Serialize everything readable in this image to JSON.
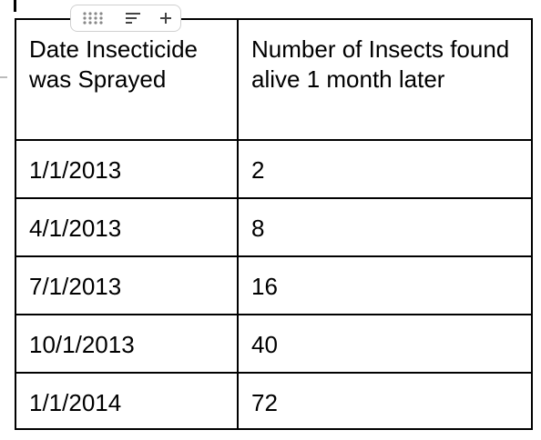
{
  "table": {
    "header": [
      "Date Insecticide was Sprayed",
      "Number of Insects found alive 1 month later"
    ],
    "rows": [
      [
        "1/1/2013",
        2
      ],
      [
        "4/1/2013",
        8
      ],
      [
        "7/1/2013",
        16
      ],
      [
        "10/1/2013",
        40
      ],
      [
        "1/1/2014",
        72
      ]
    ]
  }
}
